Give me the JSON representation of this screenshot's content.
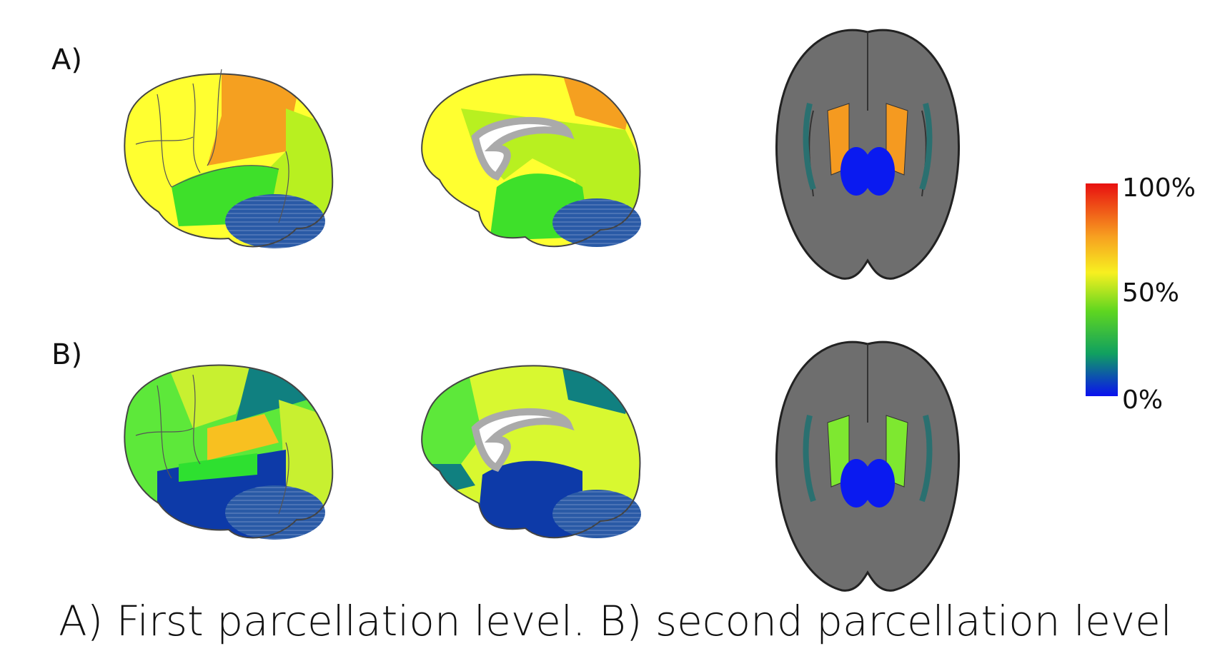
{
  "panels": [
    {
      "label": "A)"
    },
    {
      "label": "B)"
    }
  ],
  "colorbar": {
    "labels": [
      "100%",
      "50%",
      "0%"
    ]
  },
  "caption": "A) First parcellation level. B) second parcellation level"
}
